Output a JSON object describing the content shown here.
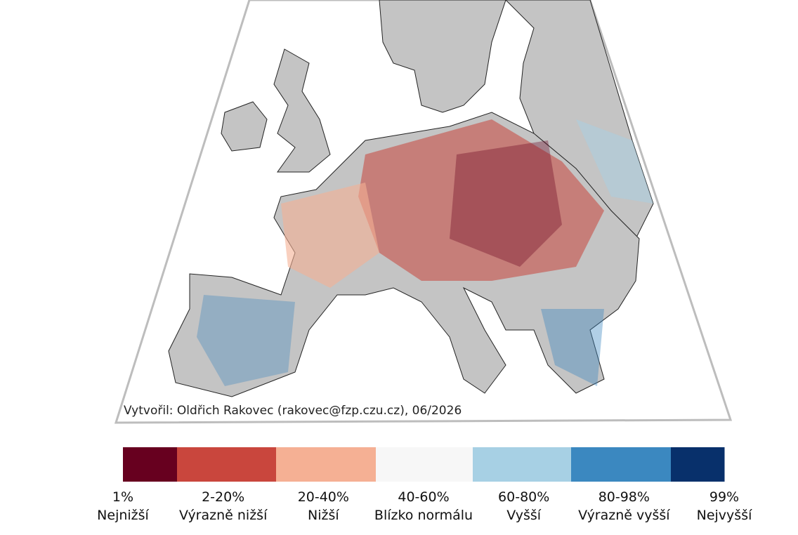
{
  "credit": "Vytvořil: Oldřich Rakovec (rakovec@fzp.czu.cz), 06/2026",
  "legend": [
    {
      "range": "1%",
      "label": "Nejnižší",
      "color": "#67001f"
    },
    {
      "range": "2-20%",
      "label": "Výrazně nižší",
      "color": "#c9463d"
    },
    {
      "range": "20-40%",
      "label": "Nižší",
      "color": "#f5b094"
    },
    {
      "range": "40-60%",
      "label": "Blízko normálu",
      "color": "#f7f7f7"
    },
    {
      "range": "60-80%",
      "label": "Vyšší",
      "color": "#a7d0e4"
    },
    {
      "range": "80-98%",
      "label": "Výrazně vyšší",
      "color": "#3b88c0"
    },
    {
      "range": "99%",
      "label": "Nejvyšší",
      "color": "#08306b"
    }
  ]
}
